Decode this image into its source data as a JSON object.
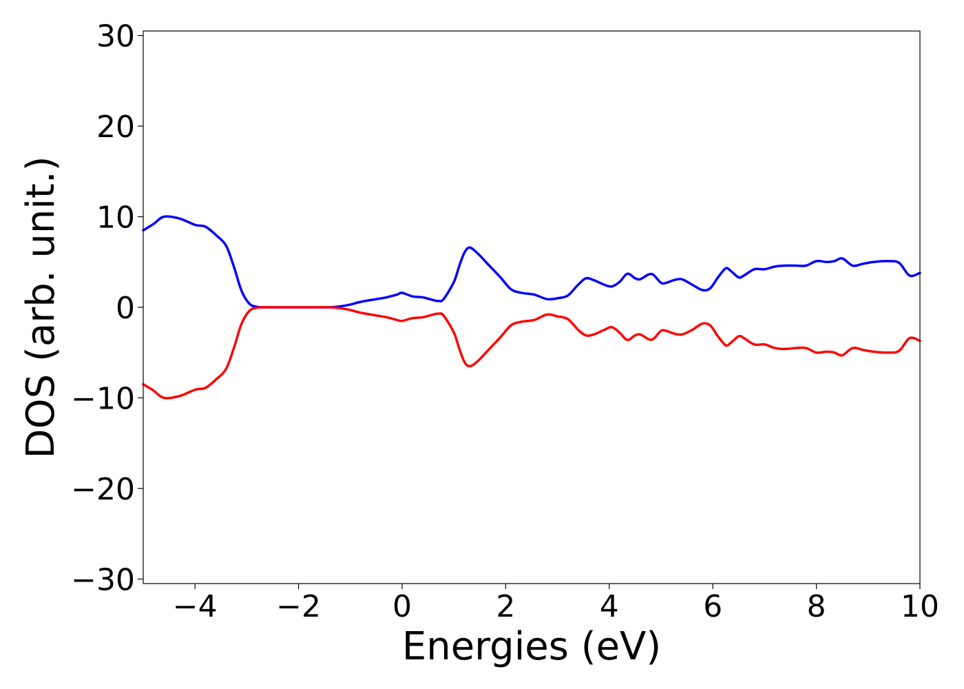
{
  "chart_data": {
    "type": "line",
    "title": "",
    "xlabel": "Energies (eV)",
    "ylabel": "DOS (arb. unit.)",
    "xlim": [
      -5,
      10
    ],
    "ylim": [
      -30.5,
      30.5
    ],
    "xticks": [
      -4,
      -2,
      0,
      2,
      4,
      6,
      8,
      10
    ],
    "xtick_labels": [
      "−4",
      "−2",
      "0",
      "2",
      "4",
      "6",
      "8",
      "10"
    ],
    "yticks": [
      30,
      20,
      10,
      0,
      -10,
      -20,
      -30
    ],
    "ytick_labels": [
      "30",
      "20",
      "10",
      "0",
      "−10",
      "−20",
      "−30"
    ],
    "grid": false,
    "legend": "none",
    "series": [
      {
        "color": "#0000ff",
        "x": [
          -5.0,
          -4.8,
          -4.6,
          -4.3,
          -4.0,
          -3.8,
          -3.6,
          -3.4,
          -3.25,
          -3.1,
          -2.95,
          -2.8,
          -2.6,
          -2.2,
          -1.8,
          -1.4,
          -1.2,
          -1.0,
          -0.8,
          -0.5,
          -0.3,
          -0.1,
          0.0,
          0.2,
          0.4,
          0.6,
          0.7,
          0.8,
          1.0,
          1.1,
          1.2,
          1.3,
          1.45,
          1.7,
          1.9,
          2.1,
          2.3,
          2.55,
          2.8,
          3.0,
          3.2,
          3.4,
          3.55,
          3.7,
          3.9,
          4.05,
          4.2,
          4.35,
          4.5,
          4.6,
          4.75,
          4.85,
          5.0,
          5.1,
          5.25,
          5.4,
          5.6,
          5.8,
          5.95,
          6.1,
          6.25,
          6.35,
          6.5,
          6.6,
          6.8,
          7.0,
          7.2,
          7.4,
          7.6,
          7.8,
          8.0,
          8.2,
          8.35,
          8.5,
          8.7,
          8.9,
          9.1,
          9.4,
          9.6,
          9.8,
          10.0
        ],
        "y": [
          8.5,
          9.2,
          10.0,
          9.8,
          9.1,
          8.9,
          8.0,
          6.8,
          4.5,
          1.8,
          0.4,
          0.05,
          0.0,
          0.0,
          0.0,
          0.0,
          0.1,
          0.3,
          0.6,
          0.9,
          1.1,
          1.4,
          1.6,
          1.2,
          1.1,
          0.8,
          0.7,
          0.9,
          2.8,
          4.5,
          6.0,
          6.6,
          6.0,
          4.5,
          3.3,
          2.0,
          1.6,
          1.4,
          0.9,
          1.0,
          1.3,
          2.5,
          3.2,
          3.0,
          2.5,
          2.3,
          2.8,
          3.7,
          3.2,
          3.1,
          3.6,
          3.6,
          2.7,
          2.7,
          3.0,
          3.1,
          2.5,
          1.9,
          2.1,
          3.3,
          4.3,
          4.0,
          3.3,
          3.5,
          4.2,
          4.2,
          4.5,
          4.6,
          4.6,
          4.6,
          5.1,
          5.0,
          5.1,
          5.4,
          4.6,
          4.8,
          5.0,
          5.1,
          4.9,
          3.5,
          3.8
        ]
      },
      {
        "color": "#ff0000",
        "x": [
          -5.0,
          -4.8,
          -4.6,
          -4.3,
          -4.0,
          -3.8,
          -3.6,
          -3.4,
          -3.25,
          -3.1,
          -2.95,
          -2.8,
          -2.6,
          -2.2,
          -1.8,
          -1.4,
          -1.2,
          -1.0,
          -0.8,
          -0.5,
          -0.3,
          -0.1,
          0.0,
          0.2,
          0.4,
          0.6,
          0.7,
          0.8,
          1.0,
          1.1,
          1.2,
          1.3,
          1.45,
          1.7,
          1.9,
          2.1,
          2.3,
          2.55,
          2.8,
          3.0,
          3.2,
          3.4,
          3.55,
          3.7,
          3.9,
          4.05,
          4.2,
          4.35,
          4.5,
          4.6,
          4.75,
          4.85,
          5.0,
          5.1,
          5.25,
          5.4,
          5.6,
          5.8,
          5.95,
          6.1,
          6.25,
          6.35,
          6.5,
          6.6,
          6.8,
          7.0,
          7.2,
          7.4,
          7.6,
          7.8,
          8.0,
          8.2,
          8.35,
          8.5,
          8.7,
          8.9,
          9.1,
          9.4,
          9.6,
          9.8,
          10.0
        ],
        "y": [
          -8.5,
          -9.2,
          -10.0,
          -9.8,
          -9.1,
          -8.9,
          -8.0,
          -6.8,
          -4.5,
          -1.8,
          -0.4,
          -0.05,
          0.0,
          0.0,
          0.0,
          0.0,
          -0.1,
          -0.3,
          -0.6,
          -0.9,
          -1.1,
          -1.4,
          -1.5,
          -1.2,
          -1.1,
          -0.8,
          -0.7,
          -0.9,
          -2.8,
          -4.5,
          -6.0,
          -6.5,
          -6.0,
          -4.5,
          -3.3,
          -2.0,
          -1.6,
          -1.4,
          -0.8,
          -1.0,
          -1.3,
          -2.5,
          -3.1,
          -3.0,
          -2.5,
          -2.2,
          -2.8,
          -3.6,
          -3.1,
          -3.0,
          -3.5,
          -3.5,
          -2.6,
          -2.6,
          -2.9,
          -3.0,
          -2.5,
          -1.8,
          -2.0,
          -3.2,
          -4.2,
          -3.9,
          -3.2,
          -3.4,
          -4.1,
          -4.1,
          -4.5,
          -4.6,
          -4.5,
          -4.5,
          -5.0,
          -4.9,
          -5.0,
          -5.3,
          -4.5,
          -4.7,
          -4.9,
          -5.0,
          -4.8,
          -3.4,
          -3.7
        ]
      }
    ]
  }
}
